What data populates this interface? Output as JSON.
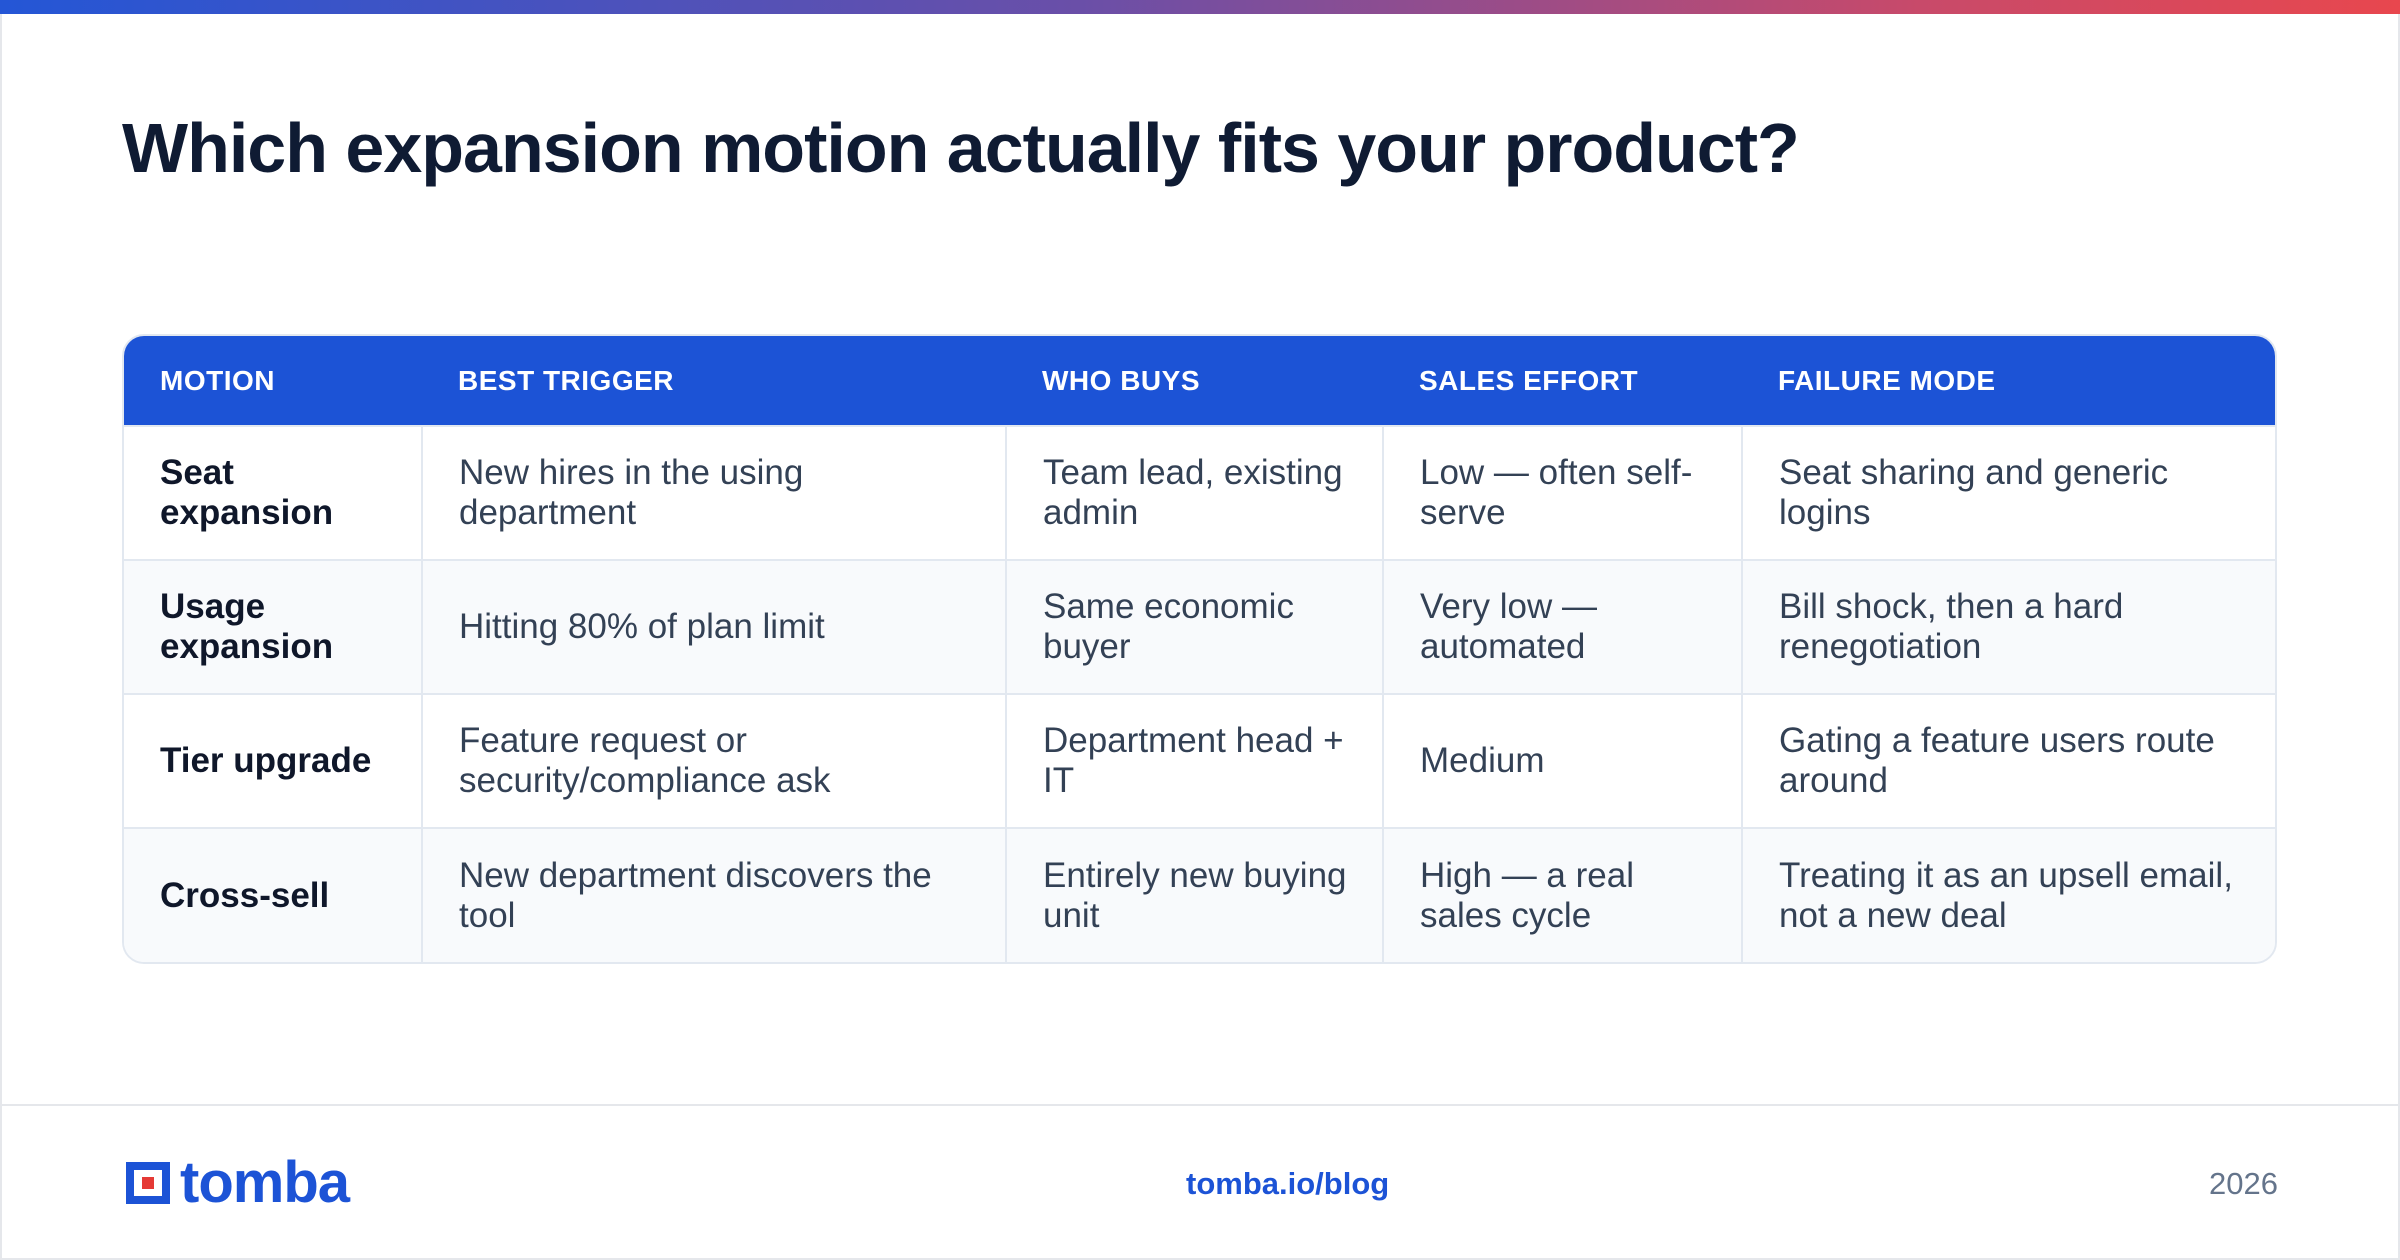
{
  "title": "Which expansion motion actually fits your product?",
  "table": {
    "headers": [
      "MOTION",
      "BEST TRIGGER",
      "WHO BUYS",
      "SALES EFFORT",
      "FAILURE MODE"
    ],
    "rows": [
      [
        "Seat expansion",
        "New hires in the using department",
        "Team lead, existing admin",
        "Low — often self-serve",
        "Seat sharing and generic logins"
      ],
      [
        "Usage expansion",
        "Hitting 80% of plan limit",
        "Same economic buyer",
        "Very low — automated",
        "Bill shock, then a hard renegotiation"
      ],
      [
        "Tier upgrade",
        "Feature request or security/compliance ask",
        "Department head + IT",
        "Medium",
        "Gating a feature users route around"
      ],
      [
        "Cross-sell",
        "New department discovers the tool",
        "Entirely new buying unit",
        "High — a real sales cycle",
        "Treating it as an upsell email, not a new deal"
      ]
    ]
  },
  "footer": {
    "logo_text": "tomba",
    "link": "tomba.io/blog",
    "year": "2026"
  },
  "colors": {
    "accent": "#1c53d6",
    "gradient_start": "#2456d6",
    "gradient_end": "#e8474e",
    "logo_red": "#e53935"
  },
  "icons": {
    "logo_mark": "tomba-logo-mark"
  }
}
